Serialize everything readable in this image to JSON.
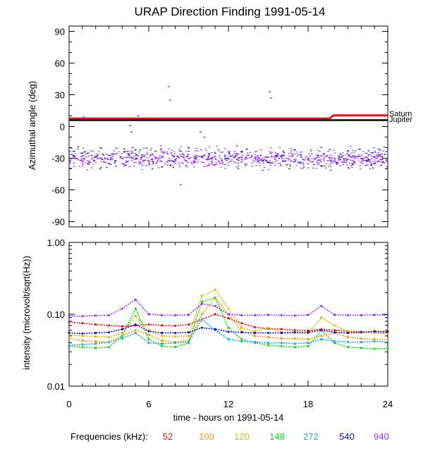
{
  "chart_data": [
    {
      "type": "scatter",
      "title": "URAP Direction Finding  1991-05-14",
      "ylabel": "Azimuthal angle (deg)",
      "xlim": [
        0,
        24
      ],
      "ylim": [
        -95,
        95
      ],
      "yticks": [
        -90,
        -60,
        -30,
        0,
        30,
        60,
        90
      ],
      "yticklabels": [
        "-90",
        "-60",
        "-30",
        "0",
        "30",
        "60",
        "90"
      ],
      "reference_lines": [
        {
          "name": "Saturn",
          "color": "#ee1111",
          "points": [
            [
              0,
              7.5
            ],
            [
              19.6,
              7.5
            ],
            [
              19.9,
              10.5
            ],
            [
              24,
              10.5
            ]
          ]
        },
        {
          "name": "Jupiter",
          "color": "#000000",
          "points": [
            [
              0,
              6
            ],
            [
              24,
              6
            ]
          ]
        }
      ],
      "series": [
        {
          "color": "#9933ff",
          "description_points": [
            [
              0.5,
              -30
            ],
            [
              1,
              -28
            ],
            [
              1.5,
              -33
            ],
            [
              2,
              -29
            ],
            [
              2.5,
              -31
            ],
            [
              3,
              -27
            ],
            [
              3.5,
              -32
            ],
            [
              4,
              -30
            ],
            [
              4.5,
              -29
            ],
            [
              5,
              -31
            ],
            [
              5.5,
              -28
            ],
            [
              6,
              -33
            ],
            [
              6.5,
              -30
            ],
            [
              7,
              -29
            ],
            [
              7.5,
              -32
            ],
            [
              8,
              -31
            ],
            [
              8.5,
              -28
            ],
            [
              9,
              -30
            ],
            [
              9.5,
              -33
            ],
            [
              10,
              -29
            ],
            [
              10.5,
              -31
            ],
            [
              11,
              -28
            ],
            [
              11.5,
              -32
            ],
            [
              12,
              -30
            ],
            [
              12.5,
              -29
            ],
            [
              13,
              -31
            ],
            [
              13.5,
              -27
            ],
            [
              14,
              -30
            ],
            [
              14.5,
              -32
            ],
            [
              15,
              -29
            ],
            [
              15.5,
              -31
            ],
            [
              16,
              -28
            ],
            [
              16.5,
              -30
            ],
            [
              17,
              -33
            ],
            [
              17.5,
              -29
            ],
            [
              18,
              -31
            ],
            [
              18.5,
              -30
            ],
            [
              19,
              -28
            ],
            [
              19.5,
              -32
            ],
            [
              20,
              -30
            ],
            [
              20.5,
              -29
            ],
            [
              21,
              -31
            ],
            [
              21.5,
              -28
            ],
            [
              22,
              -30
            ],
            [
              22.5,
              -33
            ],
            [
              23,
              -29
            ],
            [
              23.5,
              -31
            ],
            [
              1.1,
              9
            ],
            [
              5.2,
              10
            ],
            [
              7.5,
              38
            ],
            [
              7.6,
              25
            ],
            [
              9.9,
              -5
            ],
            [
              10.2,
              -10
            ],
            [
              15.1,
              33
            ],
            [
              15.2,
              27
            ],
            [
              8.4,
              -55
            ],
            [
              4.6,
              1
            ],
            [
              4.7,
              -5
            ]
          ]
        },
        {
          "color": "#1111cc",
          "description_points": [
            [
              1,
              -25
            ],
            [
              3,
              -35
            ],
            [
              5,
              -22
            ],
            [
              7,
              -38
            ],
            [
              9,
              -20
            ],
            [
              11,
              -36
            ],
            [
              13,
              -24
            ],
            [
              15,
              -34
            ],
            [
              17,
              -22
            ],
            [
              19,
              -37
            ],
            [
              21,
              -23
            ],
            [
              23,
              -35
            ]
          ]
        }
      ]
    },
    {
      "type": "line",
      "xlabel": "time - hours on 1991-05-14",
      "ylabel": "intensity (microvolt/sqrt(Hz))",
      "xlim": [
        0,
        24
      ],
      "ylim": [
        0.01,
        1.0
      ],
      "yscale": "log",
      "xticks": [
        0,
        6,
        12,
        18,
        24
      ],
      "xticklabels": [
        "0",
        "6",
        "12",
        "18",
        "24"
      ],
      "yticks": [
        0.01,
        0.1,
        1.0
      ],
      "yticklabels": [
        "0.01",
        "0.10",
        "1.00"
      ],
      "legend_title": "Frequencies (kHz):",
      "legend_placement": "bottom",
      "series": [
        {
          "name": "52",
          "color": "#ee1111",
          "x": [
            0,
            1,
            2,
            3,
            4,
            5,
            6,
            7,
            8,
            9,
            10,
            11,
            12,
            13,
            14,
            15,
            16,
            17,
            18,
            19,
            20,
            21,
            22,
            23,
            24
          ],
          "y": [
            0.078,
            0.075,
            0.072,
            0.07,
            0.068,
            0.07,
            0.072,
            0.07,
            0.069,
            0.072,
            0.085,
            0.1,
            0.088,
            0.075,
            0.066,
            0.063,
            0.062,
            0.06,
            0.059,
            0.062,
            0.06,
            0.058,
            0.057,
            0.056,
            0.055
          ]
        },
        {
          "name": "100",
          "color": "#ff9900",
          "x": [
            0,
            1,
            2,
            3,
            4,
            5,
            6,
            7,
            8,
            9,
            10,
            11,
            12,
            13,
            14,
            15,
            16,
            17,
            18,
            19,
            20,
            21,
            22,
            23,
            24
          ],
          "y": [
            0.046,
            0.043,
            0.042,
            0.041,
            0.05,
            0.06,
            0.052,
            0.043,
            0.041,
            0.043,
            0.1,
            0.17,
            0.1,
            0.058,
            0.05,
            0.048,
            0.046,
            0.046,
            0.045,
            0.05,
            0.055,
            0.048,
            0.046,
            0.045,
            0.044
          ]
        },
        {
          "name": "120",
          "color": "#ddbb00",
          "x": [
            0,
            1,
            2,
            3,
            4,
            5,
            6,
            7,
            8,
            9,
            10,
            11,
            12,
            13,
            14,
            15,
            16,
            17,
            18,
            19,
            20,
            21,
            22,
            23,
            24
          ],
          "y": [
            0.052,
            0.05,
            0.049,
            0.048,
            0.055,
            0.095,
            0.06,
            0.05,
            0.049,
            0.05,
            0.18,
            0.22,
            0.12,
            0.065,
            0.058,
            0.065,
            0.056,
            0.055,
            0.054,
            0.09,
            0.07,
            0.058,
            0.056,
            0.055,
            0.054
          ]
        },
        {
          "name": "148",
          "color": "#11dd11",
          "x": [
            0,
            1,
            2,
            3,
            4,
            5,
            6,
            7,
            8,
            9,
            10,
            11,
            12,
            13,
            14,
            15,
            16,
            17,
            18,
            19,
            20,
            21,
            22,
            23,
            24
          ],
          "y": [
            0.036,
            0.035,
            0.034,
            0.035,
            0.05,
            0.12,
            0.045,
            0.036,
            0.035,
            0.04,
            0.15,
            0.17,
            0.065,
            0.045,
            0.04,
            0.037,
            0.036,
            0.035,
            0.036,
            0.06,
            0.04,
            0.035,
            0.034,
            0.033,
            0.033
          ]
        },
        {
          "name": "272",
          "color": "#11aaee",
          "x": [
            0,
            1,
            2,
            3,
            4,
            5,
            6,
            7,
            8,
            9,
            10,
            11,
            12,
            13,
            14,
            15,
            16,
            17,
            18,
            19,
            20,
            21,
            22,
            23,
            24
          ],
          "y": [
            0.037,
            0.038,
            0.039,
            0.041,
            0.046,
            0.055,
            0.04,
            0.039,
            0.04,
            0.041,
            0.085,
            0.06,
            0.045,
            0.042,
            0.041,
            0.04,
            0.04,
            0.039,
            0.04,
            0.045,
            0.042,
            0.041,
            0.041,
            0.042,
            0.041
          ]
        },
        {
          "name": "540",
          "color": "#1111cc",
          "x": [
            0,
            1,
            2,
            3,
            4,
            5,
            6,
            7,
            8,
            9,
            10,
            11,
            12,
            13,
            14,
            15,
            16,
            17,
            18,
            19,
            20,
            21,
            22,
            23,
            24
          ],
          "y": [
            0.055,
            0.054,
            0.055,
            0.056,
            0.062,
            0.072,
            0.058,
            0.055,
            0.055,
            0.056,
            0.065,
            0.062,
            0.057,
            0.056,
            0.055,
            0.055,
            0.055,
            0.056,
            0.056,
            0.06,
            0.056,
            0.055,
            0.056,
            0.058,
            0.057
          ]
        },
        {
          "name": "940",
          "color": "#9933ff",
          "x": [
            0,
            1,
            2,
            3,
            4,
            5,
            6,
            7,
            8,
            9,
            10,
            11,
            12,
            13,
            14,
            15,
            16,
            17,
            18,
            19,
            20,
            21,
            22,
            23,
            24
          ],
          "y": [
            0.095,
            0.094,
            0.096,
            0.097,
            0.12,
            0.16,
            0.1,
            0.097,
            0.097,
            0.098,
            0.14,
            0.13,
            0.1,
            0.097,
            0.097,
            0.098,
            0.097,
            0.096,
            0.098,
            0.13,
            0.098,
            0.097,
            0.097,
            0.098,
            0.097
          ]
        }
      ]
    }
  ]
}
